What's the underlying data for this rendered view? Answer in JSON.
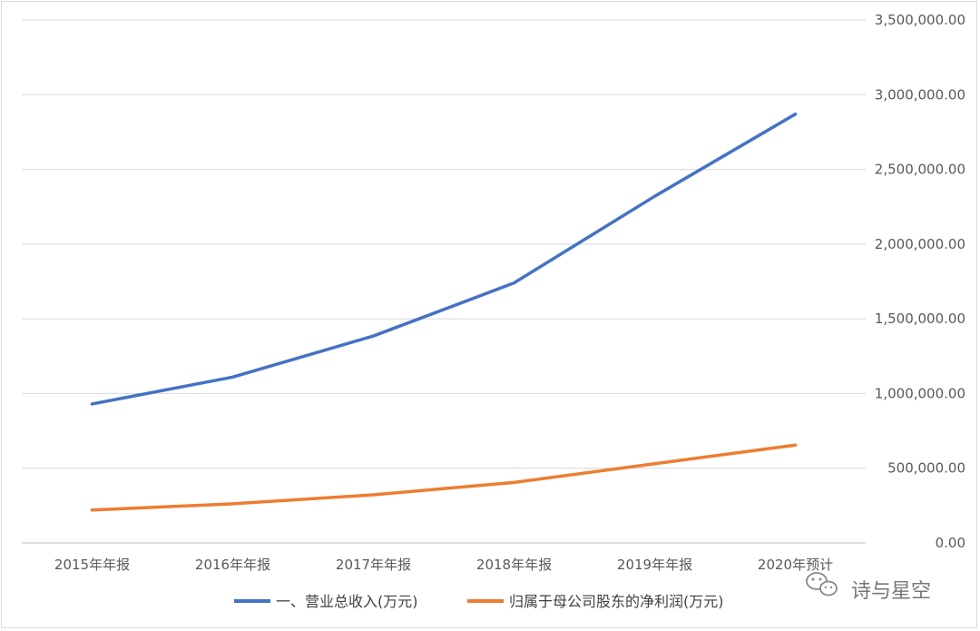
{
  "chart_data": {
    "type": "line",
    "categories": [
      "2015年年报",
      "2016年年报",
      "2017年年报",
      "2018年年报",
      "2019年年报",
      "2020年预计"
    ],
    "series": [
      {
        "name": "一、营业总收入(万元)",
        "color": "#4472C4",
        "values": [
          930000,
          1110000,
          1385000,
          1740000,
          2320000,
          2870000
        ]
      },
      {
        "name": "归属于母公司股东的净利润(万元)",
        "color": "#ED7D31",
        "values": [
          220000,
          262000,
          322000,
          405000,
          530000,
          655000
        ]
      }
    ],
    "ylim": [
      0,
      3500000
    ],
    "yticks": [
      0,
      500000,
      1000000,
      1500000,
      2000000,
      2500000,
      3000000,
      3500000
    ],
    "ytick_labels": [
      "0.00",
      "500,000.00",
      "1,000,000.00",
      "1,500,000.00",
      "2,000,000.00",
      "2,500,000.00",
      "3,000,000.00",
      "3,500,000.00"
    ],
    "y_axis_side": "right",
    "grid": true,
    "legend_position": "bottom",
    "title": "",
    "xlabel": "",
    "ylabel": ""
  },
  "watermark": {
    "text": "诗与星空",
    "icon": "wechat-icon"
  }
}
